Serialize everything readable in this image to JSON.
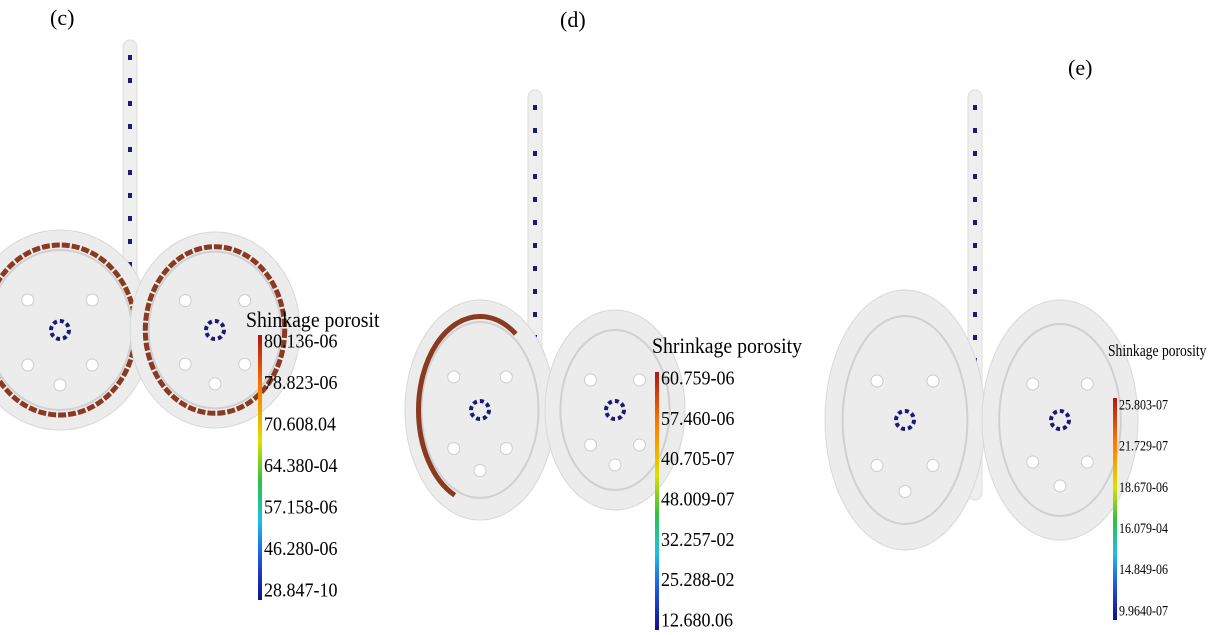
{
  "panels": [
    {
      "label": "(c)",
      "legend": {
        "title": "Shinkage porosit",
        "labels": [
          "80.136-06",
          "78.823-06",
          "70.608.04",
          "64.380-04",
          "57.158-06",
          "46.280-06",
          "28.847-10"
        ]
      }
    },
    {
      "label": "(d)",
      "legend": {
        "title": "Shrinkage porosity",
        "labels": [
          "60.759-06",
          "57.460-06",
          "40.705-07",
          "48.009-07",
          "32.257-02",
          "25.288-02",
          "12.680.06"
        ]
      }
    },
    {
      "label": "(e)",
      "legend": {
        "title": "Shinkage porosity",
        "labels": [
          "25.803-07",
          "21.729-07",
          "18.670-06",
          "16.079-04",
          "14.849-06",
          "9.9640-07"
        ]
      }
    }
  ]
}
